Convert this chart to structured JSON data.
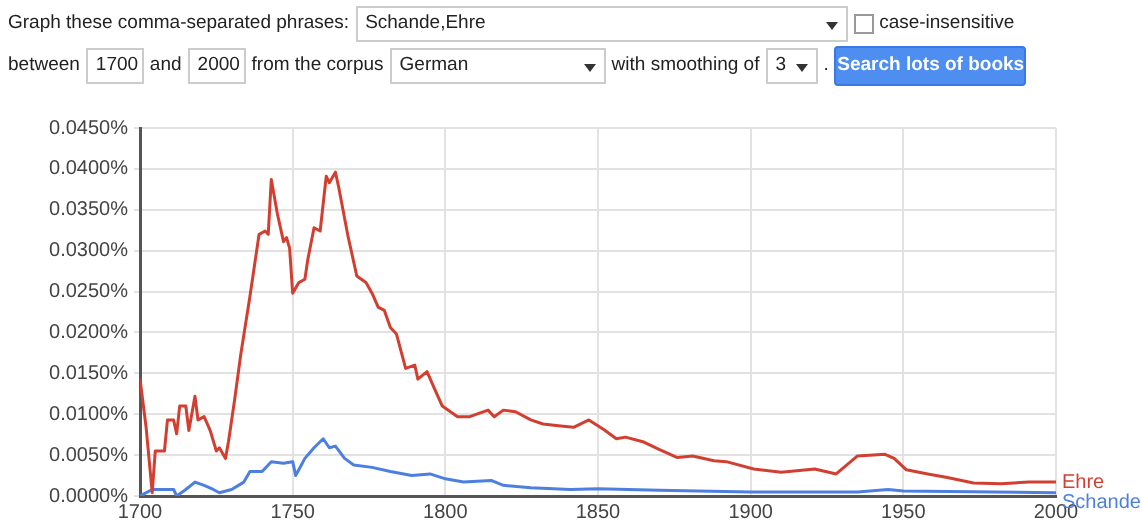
{
  "chart_data": {
    "type": "line",
    "annotations": [
      "Graph these comma-separated phrases:",
      "Schande,Ehre",
      "case-insensitive",
      "between",
      "1700",
      "and",
      "2000",
      "from the corpus",
      "German",
      "with smoothing of",
      "3",
      ".",
      "Search lots of books"
    ],
    "xlim": [
      1700,
      2000
    ],
    "xticks": [
      1700,
      1750,
      1800,
      1850,
      1900,
      1950,
      2000
    ],
    "ylim": [
      0,
      0.045
    ],
    "yticks": [
      {
        "value": 0,
        "label": "0.0000%"
      },
      {
        "value": 0.005,
        "label": "0.0050%"
      },
      {
        "value": 0.01,
        "label": "0.0100%"
      },
      {
        "value": 0.015,
        "label": "0.0150%"
      },
      {
        "value": 0.02,
        "label": "0.0200%"
      },
      {
        "value": 0.025,
        "label": "0.0250%"
      },
      {
        "value": 0.03,
        "label": "0.0300%"
      },
      {
        "value": 0.035,
        "label": "0.0350%"
      },
      {
        "value": 0.04,
        "label": "0.0400%"
      },
      {
        "value": 0.045,
        "label": "0.0450%"
      }
    ],
    "grid": true,
    "legend": false,
    "marker": "none",
    "line_style": "solid",
    "series": [
      {
        "name": "Ehre",
        "color": "#d23f31",
        "x": [
          1700,
          1702,
          1704,
          1705,
          1708,
          1709,
          1711,
          1712,
          1713,
          1715,
          1716,
          1718,
          1719,
          1721,
          1723,
          1725,
          1726,
          1728,
          1729,
          1731,
          1733,
          1736,
          1739,
          1741,
          1742,
          1743,
          1745,
          1747,
          1748,
          1749,
          1750,
          1752,
          1754,
          1755,
          1757,
          1759,
          1761,
          1762,
          1764,
          1765,
          1768,
          1769,
          1771,
          1774,
          1776,
          1778,
          1780,
          1782,
          1784,
          1787,
          1790,
          1791,
          1794,
          1796,
          1799,
          1804,
          1808,
          1814,
          1816,
          1819,
          1823,
          1828,
          1832,
          1837,
          1842,
          1847,
          1852,
          1856,
          1859,
          1865,
          1870,
          1876,
          1881,
          1888,
          1892,
          1901,
          1910,
          1921,
          1928,
          1935,
          1944,
          1947,
          1951,
          1958,
          1964,
          1973,
          1982,
          1991,
          2000
        ],
        "values": [
          0.0143,
          0.0084,
          0.0004,
          0.0055,
          0.0055,
          0.0093,
          0.0093,
          0.0076,
          0.011,
          0.011,
          0.008,
          0.0122,
          0.0093,
          0.0097,
          0.008,
          0.0055,
          0.0059,
          0.0046,
          0.0067,
          0.0118,
          0.0173,
          0.0244,
          0.032,
          0.0324,
          0.032,
          0.0387,
          0.0345,
          0.0311,
          0.0316,
          0.0303,
          0.0248,
          0.0261,
          0.0265,
          0.029,
          0.0328,
          0.0324,
          0.0391,
          0.0383,
          0.0396,
          0.0379,
          0.032,
          0.0303,
          0.0269,
          0.0261,
          0.0248,
          0.0231,
          0.0227,
          0.0206,
          0.0198,
          0.0156,
          0.016,
          0.0143,
          0.0152,
          0.0135,
          0.011,
          0.0097,
          0.0097,
          0.0105,
          0.0097,
          0.0105,
          0.0103,
          0.0093,
          0.0088,
          0.0086,
          0.0084,
          0.0093,
          0.0081,
          0.007,
          0.0072,
          0.0066,
          0.0057,
          0.0047,
          0.0049,
          0.0043,
          0.0042,
          0.0033,
          0.0029,
          0.0033,
          0.0027,
          0.0049,
          0.0051,
          0.0046,
          0.0032,
          0.0027,
          0.0023,
          0.0016,
          0.0015,
          0.0017,
          0.0017
        ]
      },
      {
        "name": "Schande",
        "color": "#4d7fe0",
        "x": [
          1700,
          1704,
          1711,
          1712,
          1715,
          1718,
          1721,
          1724,
          1726,
          1730,
          1734,
          1736,
          1740,
          1743,
          1747,
          1750,
          1751,
          1754,
          1757,
          1760,
          1762,
          1764,
          1767,
          1770,
          1776,
          1782,
          1789,
          1795,
          1800,
          1806,
          1815,
          1819,
          1828,
          1841,
          1850,
          1870,
          1900,
          1935,
          1945,
          1950,
          2000
        ],
        "values": [
          0,
          0.0008,
          0.0008,
          0,
          0.0008,
          0.0017,
          0.0013,
          0.0008,
          0.0004,
          0.0008,
          0.0017,
          0.003,
          0.003,
          0.0042,
          0.004,
          0.0042,
          0.0025,
          0.0046,
          0.0059,
          0.007,
          0.0059,
          0.0061,
          0.0046,
          0.0038,
          0.0035,
          0.003,
          0.0025,
          0.0027,
          0.0021,
          0.0017,
          0.0019,
          0.0013,
          0.001,
          0.0008,
          0.0009,
          0.0007,
          0.0005,
          0.0005,
          0.0008,
          0.0006,
          0.0004
        ]
      }
    ]
  }
}
